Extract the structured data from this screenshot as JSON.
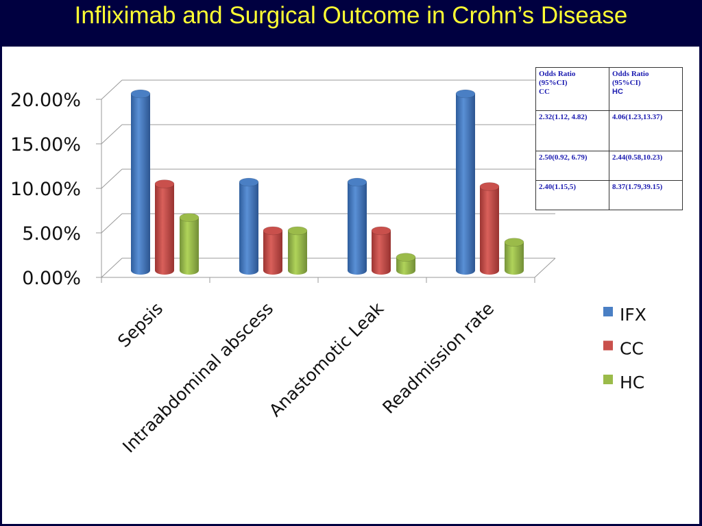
{
  "title": "Infliximab and Surgical Outcome in Crohn’s Disease",
  "chart_data": {
    "type": "bar",
    "style": "3d-cylinder",
    "categories": [
      "Sepsis",
      "Intraabdominal abscess",
      "Anastomotic Leak",
      "Readmission rate"
    ],
    "series": [
      {
        "name": "IFX",
        "color": "#4a7fc4",
        "values": [
          20.0,
          10.0,
          10.0,
          20.0
        ]
      },
      {
        "name": "CC",
        "color": "#c9504c",
        "values": [
          9.8,
          4.5,
          4.5,
          9.5
        ]
      },
      {
        "name": "HC",
        "color": "#9bbb4a",
        "values": [
          6.0,
          4.5,
          1.5,
          3.2
        ]
      }
    ],
    "ylim": [
      0,
      20
    ],
    "yticks": [
      "0.00%",
      "5.00%",
      "10.00%",
      "15.00%",
      "20.00%"
    ],
    "grid": true,
    "legend_position": "right"
  },
  "odds_table": {
    "headers": [
      [
        "Odds Ratio",
        "(95%CI)",
        "CC"
      ],
      [
        "Odds Ratio",
        "(95%CI)",
        "HC"
      ]
    ],
    "rows": [
      [
        "2.32(1.12, 4.82)",
        "4.06(1.23,13.37)"
      ],
      [
        "2.50(0.92, 6.79)",
        "2.44(0.58,10.23)"
      ],
      [
        "2.40(1.15,5)",
        "8.37(1.79,39.15)"
      ]
    ]
  }
}
